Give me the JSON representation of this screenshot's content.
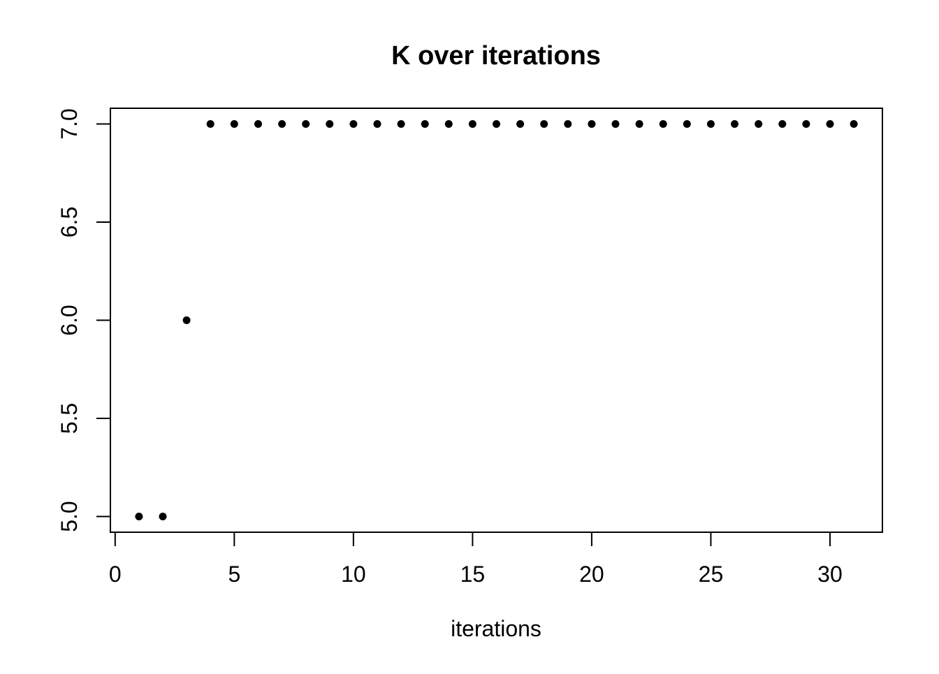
{
  "chart_data": {
    "type": "scatter",
    "title": "K over iterations",
    "xlabel": "iterations",
    "ylabel": "",
    "x": [
      1,
      2,
      3,
      4,
      5,
      6,
      7,
      8,
      9,
      10,
      11,
      12,
      13,
      14,
      15,
      16,
      17,
      18,
      19,
      20,
      21,
      22,
      23,
      24,
      25,
      26,
      27,
      28,
      29,
      30,
      31
    ],
    "y": [
      5,
      5,
      6,
      7,
      7,
      7,
      7,
      7,
      7,
      7,
      7,
      7,
      7,
      7,
      7,
      7,
      7,
      7,
      7,
      7,
      7,
      7,
      7,
      7,
      7,
      7,
      7,
      7,
      7,
      7,
      7
    ],
    "xticks": [
      0,
      5,
      10,
      15,
      20,
      25,
      30
    ],
    "xtick_labels": [
      "0",
      "5",
      "10",
      "15",
      "20",
      "25",
      "30"
    ],
    "yticks": [
      5.0,
      5.5,
      6.0,
      6.5,
      7.0
    ],
    "ytick_labels": [
      "5.0",
      "5.5",
      "6.0",
      "6.5",
      "7.0"
    ],
    "xlim": [
      -0.2,
      32.2
    ],
    "ylim": [
      4.92,
      7.08
    ],
    "grid": false,
    "legend": null,
    "point_color": "#000000",
    "axis_color": "#000000",
    "background": "#ffffff"
  }
}
